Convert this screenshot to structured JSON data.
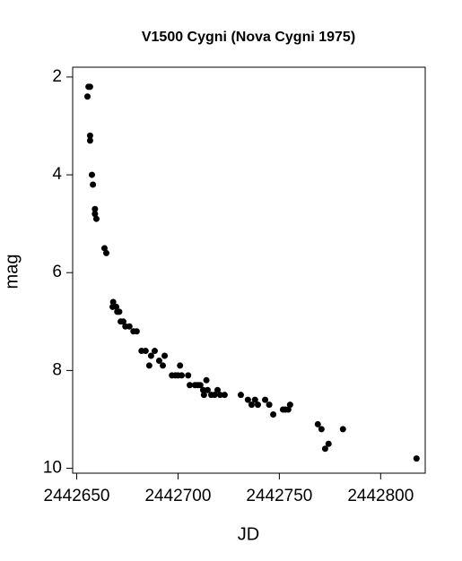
{
  "chart_data": {
    "type": "scatter",
    "title": "V1500 Cygni (Nova Cygni 1975)",
    "x_label": "JD",
    "y_label": "mag",
    "color": "#000000",
    "y_inverted": true,
    "xlim": [
      2442648,
      2442822
    ],
    "xticks": [
      2442650,
      2442700,
      2442750,
      2442800
    ],
    "ylim": [
      1.8,
      10.1
    ],
    "yticks": [
      2,
      4,
      6,
      8,
      10
    ],
    "x": [
      2442655.8,
      2442656.6,
      2442655.3,
      2442656.6,
      2442656.6,
      2442657.5,
      2442658,
      2442659,
      2442659,
      2442659.7,
      2442663.7,
      2442664.6,
      2442668,
      2442667.7,
      2442669.5,
      2442670,
      2442671,
      2442671.7,
      2442673,
      2442674,
      2442676,
      2442678,
      2442679.6,
      2442682,
      2442684,
      2442685.8,
      2442686.7,
      2442688.5,
      2442690.7,
      2442692.5,
      2442693.4,
      2442697,
      2442698.7,
      2442700,
      2442701,
      2442701.8,
      2442705,
      2442705.8,
      2442708.4,
      2442709.7,
      2442711,
      2442712.4,
      2442712.8,
      2442714,
      2442714.6,
      2442716.4,
      2442718,
      2442719.5,
      2442720.8,
      2442723,
      2442731,
      2442734.5,
      2442736.3,
      2442738,
      2442739.4,
      2442743,
      2442745,
      2442747,
      2442751.8,
      2442753,
      2442754.4,
      2442755.3,
      2442769,
      2442770.8,
      2442772.6,
      2442774.3,
      2442781.4,
      2442817.7
    ],
    "y": [
      2.2,
      2.2,
      2.4,
      3.2,
      3.3,
      4.0,
      4.2,
      4.7,
      4.8,
      4.9,
      5.5,
      5.6,
      6.6,
      6.7,
      6.7,
      6.8,
      6.8,
      7.0,
      7.0,
      7.1,
      7.1,
      7.2,
      7.2,
      7.6,
      7.6,
      7.9,
      7.7,
      7.6,
      7.8,
      7.9,
      7.7,
      8.1,
      8.1,
      8.1,
      7.9,
      8.1,
      8.1,
      8.3,
      8.3,
      8.3,
      8.3,
      8.4,
      8.5,
      8.2,
      8.4,
      8.5,
      8.5,
      8.4,
      8.5,
      8.5,
      8.5,
      8.6,
      8.7,
      8.6,
      8.7,
      8.6,
      8.7,
      8.9,
      8.8,
      8.8,
      8.8,
      8.7,
      9.1,
      9.2,
      9.6,
      9.5,
      9.2,
      9.8
    ]
  }
}
